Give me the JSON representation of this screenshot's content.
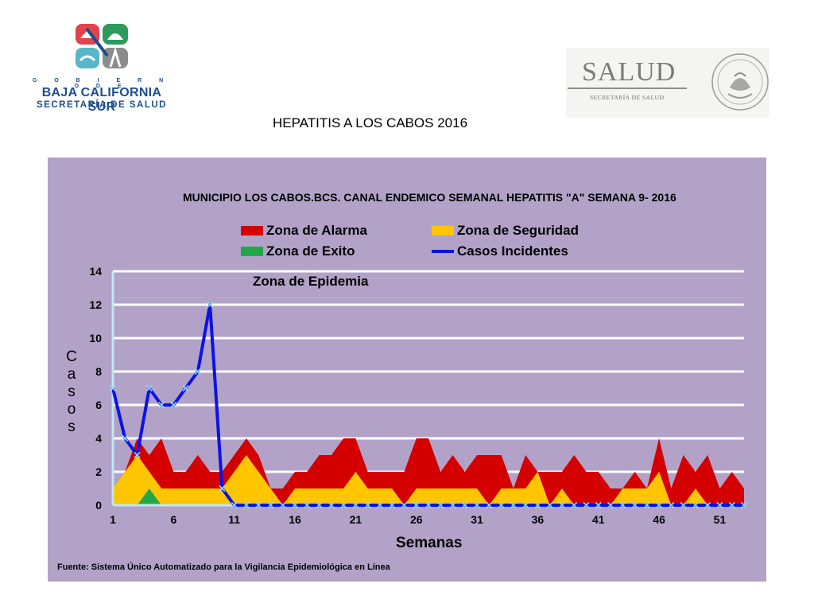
{
  "header": {
    "left_logo": {
      "gobierno": "G O B I E R N O  D E",
      "name": "BAJA CALIFORNIA SUR",
      "subtitle": "SECRETARÍA DE SALUD"
    },
    "right_logo": {
      "word": "SALUD",
      "subtitle": "SECRETARÍA DE SALUD"
    },
    "title": "HEPATITIS A LOS CABOS  2016"
  },
  "colors": {
    "panel": "#b2a2c8",
    "alarma": "#d40000",
    "seguridad": "#ffc600",
    "exito": "#22a84a",
    "casos": "#0c12e4",
    "marker": "#8fd6ea",
    "grid": "#ffffff",
    "axis": "#bfe8f4"
  },
  "chart_data": {
    "type": "area",
    "title": "MUNICIPIO LOS CABOS.BCS. CANAL ENDEMICO SEMANAL HEPATITIS  \"A\" SEMANA 9- 2016",
    "xlabel": "Semanas",
    "ylabel": "Casos",
    "epidemic_zone_label": "Zona de Epidemia",
    "ylim": [
      0,
      14
    ],
    "yticks": [
      0,
      2,
      4,
      6,
      8,
      10,
      12,
      14
    ],
    "xticks": [
      1,
      6,
      11,
      16,
      21,
      26,
      31,
      36,
      41,
      46,
      51
    ],
    "xlim": [
      1,
      53
    ],
    "grid": "horizontal",
    "legend_position": "top",
    "legend": [
      "Zona de Alarma",
      "Zona de Seguridad",
      "Zona de Exito",
      "Casos Incidentes"
    ],
    "x": [
      1,
      2,
      3,
      4,
      5,
      6,
      7,
      8,
      9,
      10,
      11,
      12,
      13,
      14,
      15,
      16,
      17,
      18,
      19,
      20,
      21,
      22,
      23,
      24,
      25,
      26,
      27,
      28,
      29,
      30,
      31,
      32,
      33,
      34,
      35,
      36,
      37,
      38,
      39,
      40,
      41,
      42,
      43,
      44,
      45,
      46,
      47,
      48,
      49,
      50,
      51,
      52,
      53
    ],
    "series": [
      {
        "name": "Zona de Alarma",
        "kind": "area",
        "values": [
          1,
          2,
          4,
          3,
          4,
          2,
          2,
          3,
          2,
          2,
          3,
          4,
          3,
          1,
          1,
          2,
          2,
          3,
          3,
          4,
          4,
          2,
          2,
          2,
          2,
          4,
          4,
          2,
          3,
          2,
          3,
          3,
          3,
          1,
          3,
          2,
          2,
          2,
          3,
          2,
          2,
          1,
          1,
          2,
          1,
          4,
          1,
          3,
          2,
          3,
          1,
          2,
          1
        ]
      },
      {
        "name": "Zona de Seguridad",
        "kind": "area",
        "values": [
          1,
          2,
          3,
          2,
          1,
          1,
          1,
          1,
          1,
          1,
          2,
          3,
          2,
          1,
          0,
          1,
          1,
          1,
          1,
          1,
          2,
          1,
          1,
          1,
          0,
          1,
          1,
          1,
          1,
          1,
          1,
          0,
          1,
          1,
          1,
          2,
          0,
          1,
          0,
          0,
          0,
          0,
          1,
          1,
          1,
          2,
          0,
          0,
          1,
          0,
          0,
          0,
          0
        ]
      },
      {
        "name": "Zona de Exito",
        "kind": "area",
        "values": [
          0,
          0,
          0,
          1,
          0,
          0,
          0,
          0,
          0,
          0,
          0,
          0,
          0,
          0,
          0,
          0,
          0,
          0,
          0,
          0,
          0,
          0,
          0,
          0,
          0,
          0,
          0,
          0,
          0,
          0,
          0,
          0,
          0,
          0,
          0,
          0,
          0,
          0,
          0,
          0,
          0,
          0,
          0,
          0,
          0,
          0,
          0,
          0,
          0,
          0,
          0,
          0,
          0
        ]
      },
      {
        "name": "Casos Incidentes",
        "kind": "line",
        "values": [
          7,
          4,
          3,
          7,
          6,
          6,
          7,
          8,
          12,
          1,
          0,
          0,
          0,
          0,
          0,
          0,
          0,
          0,
          0,
          0,
          0,
          0,
          0,
          0,
          0,
          0,
          0,
          0,
          0,
          0,
          0,
          0,
          0,
          0,
          0,
          0,
          0,
          0,
          0,
          0,
          0,
          0,
          0,
          0,
          0,
          0,
          0,
          0,
          0,
          0,
          0,
          0,
          0
        ]
      }
    ]
  },
  "source": "Fuente: Sistema Único Automatizado para la Vigilancia Epidemiológica en Línea"
}
